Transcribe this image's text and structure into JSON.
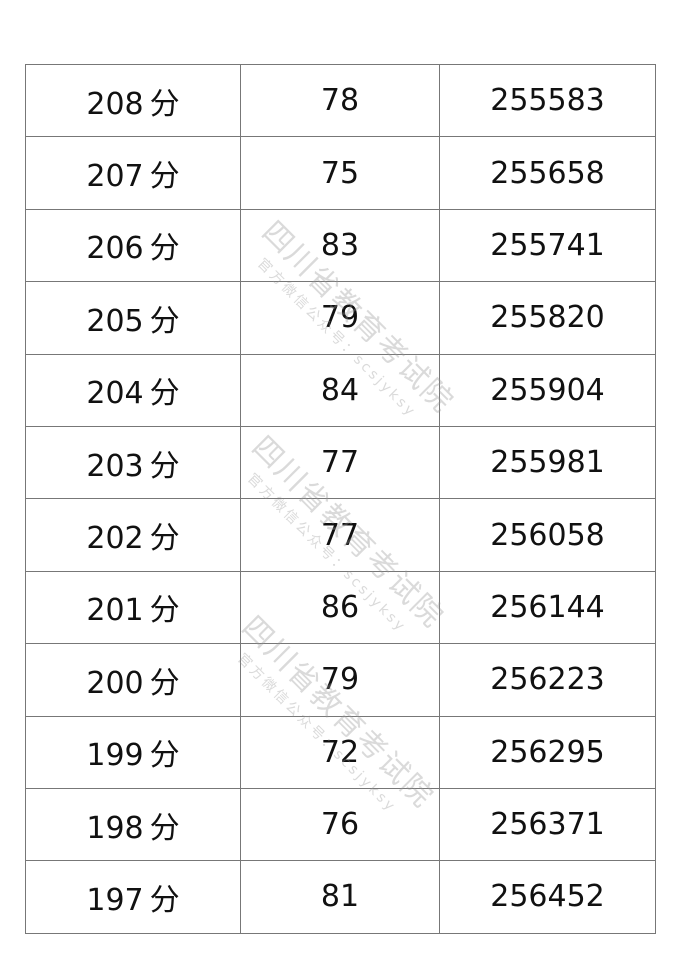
{
  "score_suffix": "分",
  "rows": [
    {
      "score": "208",
      "count": "78",
      "cumulative": "255583"
    },
    {
      "score": "207",
      "count": "75",
      "cumulative": "255658"
    },
    {
      "score": "206",
      "count": "83",
      "cumulative": "255741"
    },
    {
      "score": "205",
      "count": "79",
      "cumulative": "255820"
    },
    {
      "score": "204",
      "count": "84",
      "cumulative": "255904"
    },
    {
      "score": "203",
      "count": "77",
      "cumulative": "255981"
    },
    {
      "score": "202",
      "count": "77",
      "cumulative": "256058"
    },
    {
      "score": "201",
      "count": "86",
      "cumulative": "256144"
    },
    {
      "score": "200",
      "count": "79",
      "cumulative": "256223"
    },
    {
      "score": "199",
      "count": "72",
      "cumulative": "256295"
    },
    {
      "score": "198",
      "count": "76",
      "cumulative": "256371"
    },
    {
      "score": "197",
      "count": "81",
      "cumulative": "256452"
    }
  ],
  "watermark": {
    "line1": "四川省教育考试院",
    "line2": "官方微信公众号：scsjyksy"
  }
}
